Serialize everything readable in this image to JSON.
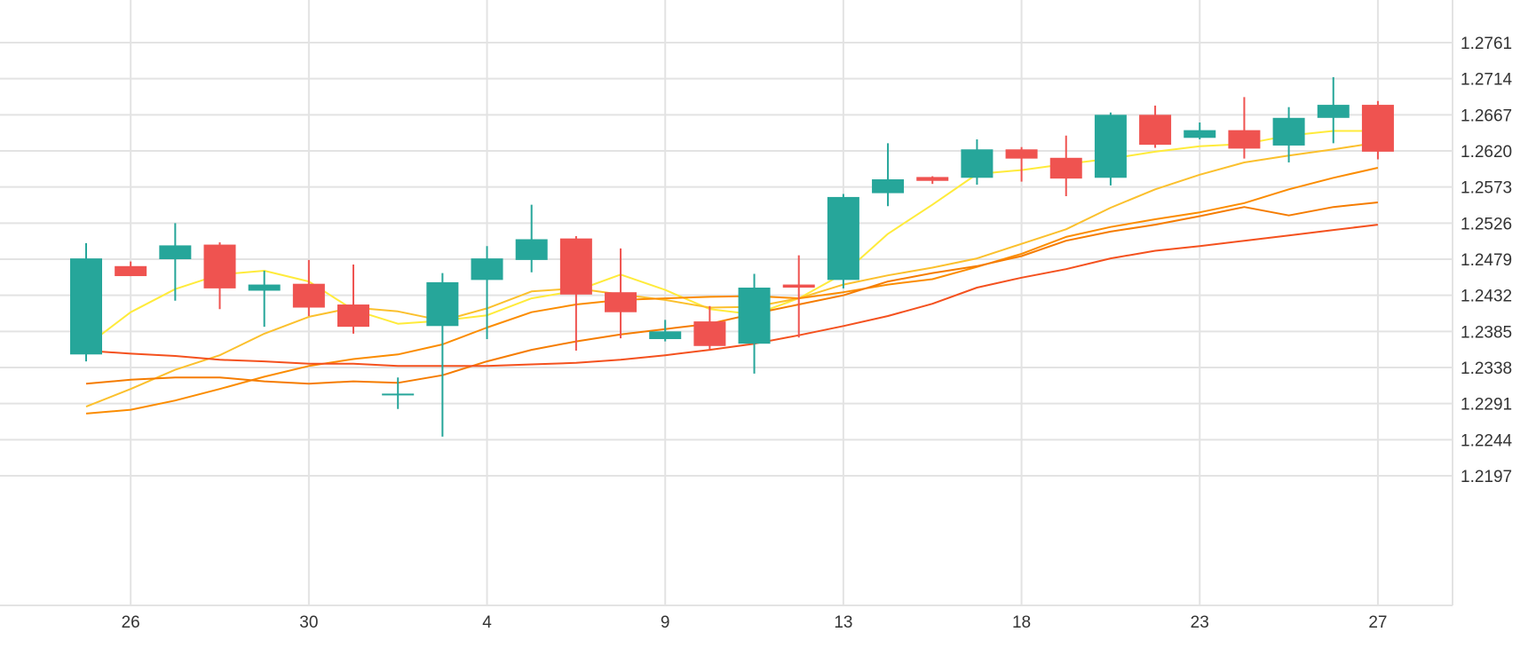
{
  "chart_data": {
    "type": "candlestick",
    "title": "",
    "xlabel": "",
    "ylabel": "",
    "ylim": [
      1.215,
      1.2808
    ],
    "y_ticks": [
      "1.2761",
      "1.2714",
      "1.2667",
      "1.2620",
      "1.2573",
      "1.2526",
      "1.2479",
      "1.2432",
      "1.2385",
      "1.2338",
      "1.2291",
      "1.2244",
      "1.2197"
    ],
    "x_ticks": [
      {
        "label": "26",
        "index": 1
      },
      {
        "label": "30",
        "index": 5
      },
      {
        "label": "4",
        "index": 9
      },
      {
        "label": "9",
        "index": 13
      },
      {
        "label": "13",
        "index": 17
      },
      {
        "label": "18",
        "index": 21
      },
      {
        "label": "23",
        "index": 25
      },
      {
        "label": "27",
        "index": 29
      }
    ],
    "grid": true,
    "up_color": "#26a69a",
    "down_color": "#ef5350",
    "candles": [
      {
        "open": 1.2355,
        "high": 1.25,
        "low": 1.2346,
        "close": 1.248
      },
      {
        "open": 1.247,
        "high": 1.2476,
        "low": 1.2457,
        "close": 1.2457
      },
      {
        "open": 1.2479,
        "high": 1.2526,
        "low": 1.2425,
        "close": 1.2497
      },
      {
        "open": 1.2498,
        "high": 1.2501,
        "low": 1.2414,
        "close": 1.2441
      },
      {
        "open": 1.2438,
        "high": 1.2464,
        "low": 1.2391,
        "close": 1.2446
      },
      {
        "open": 1.2447,
        "high": 1.2478,
        "low": 1.2405,
        "close": 1.2416
      },
      {
        "open": 1.242,
        "high": 1.2472,
        "low": 1.2382,
        "close": 1.2391
      },
      {
        "open": 1.2303,
        "high": 1.2325,
        "low": 1.2284,
        "close": 1.2304
      },
      {
        "open": 1.2392,
        "high": 1.2461,
        "low": 1.2248,
        "close": 1.2449
      },
      {
        "open": 1.2452,
        "high": 1.2496,
        "low": 1.2375,
        "close": 1.248
      },
      {
        "open": 1.2478,
        "high": 1.255,
        "low": 1.2462,
        "close": 1.2505
      },
      {
        "open": 1.2506,
        "high": 1.2509,
        "low": 1.236,
        "close": 1.2433
      },
      {
        "open": 1.2436,
        "high": 1.2493,
        "low": 1.2376,
        "close": 1.241
      },
      {
        "open": 1.2375,
        "high": 1.24,
        "low": 1.2372,
        "close": 1.2385
      },
      {
        "open": 1.2398,
        "high": 1.2418,
        "low": 1.2362,
        "close": 1.2366
      },
      {
        "open": 1.2369,
        "high": 1.246,
        "low": 1.233,
        "close": 1.2442
      },
      {
        "open": 1.2446,
        "high": 1.2484,
        "low": 1.2377,
        "close": 1.2442
      },
      {
        "open": 1.2452,
        "high": 1.2564,
        "low": 1.2441,
        "close": 1.256
      },
      {
        "open": 1.2565,
        "high": 1.263,
        "low": 1.2548,
        "close": 1.2583
      },
      {
        "open": 1.2586,
        "high": 1.2587,
        "low": 1.2577,
        "close": 1.2581
      },
      {
        "open": 1.2585,
        "high": 1.2635,
        "low": 1.2576,
        "close": 1.2622
      },
      {
        "open": 1.2622,
        "high": 1.2625,
        "low": 1.258,
        "close": 1.261
      },
      {
        "open": 1.2611,
        "high": 1.264,
        "low": 1.2561,
        "close": 1.2584
      },
      {
        "open": 1.2585,
        "high": 1.267,
        "low": 1.2575,
        "close": 1.2667
      },
      {
        "open": 1.2667,
        "high": 1.2679,
        "low": 1.2624,
        "close": 1.2628
      },
      {
        "open": 1.2637,
        "high": 1.2657,
        "low": 1.2635,
        "close": 1.2647
      },
      {
        "open": 1.2647,
        "high": 1.269,
        "low": 1.261,
        "close": 1.2623
      },
      {
        "open": 1.2627,
        "high": 1.2677,
        "low": 1.2605,
        "close": 1.2663
      },
      {
        "open": 1.2663,
        "high": 1.2716,
        "low": 1.263,
        "close": 1.268
      },
      {
        "open": 1.268,
        "high": 1.2685,
        "low": 1.2609,
        "close": 1.2619
      }
    ],
    "series": [
      {
        "type": "line",
        "color": "#ffeb3b",
        "values": [
          1.2366,
          1.241,
          1.244,
          1.2459,
          1.2464,
          1.245,
          1.2413,
          1.2395,
          1.2399,
          1.2406,
          1.2428,
          1.2438,
          1.2459,
          1.2439,
          1.2414,
          1.2407,
          1.2428,
          1.246,
          1.2512,
          1.255,
          1.259,
          1.2595,
          1.2603,
          1.261,
          1.2619,
          1.2626,
          1.2629,
          1.264,
          1.2646,
          1.2646
        ]
      },
      {
        "type": "line",
        "color": "#fbc02d",
        "values": [
          1.2287,
          1.231,
          1.2335,
          1.2354,
          1.2382,
          1.2404,
          1.2416,
          1.2411,
          1.2399,
          1.2415,
          1.2437,
          1.2441,
          1.2433,
          1.2426,
          1.2416,
          1.2417,
          1.2428,
          1.2446,
          1.2458,
          1.2468,
          1.248,
          1.2499,
          1.2518,
          1.2546,
          1.257,
          1.2589,
          1.2605,
          1.2614,
          1.2622,
          1.2631
        ]
      },
      {
        "type": "line",
        "color": "#fb8c00",
        "values": [
          1.2278,
          1.2283,
          1.2295,
          1.231,
          1.2326,
          1.234,
          1.2349,
          1.2355,
          1.2368,
          1.239,
          1.241,
          1.242,
          1.2426,
          1.2428,
          1.243,
          1.2431,
          1.2428,
          1.2436,
          1.2446,
          1.2453,
          1.2469,
          1.2486,
          1.2508,
          1.2521,
          1.2531,
          1.254,
          1.2552,
          1.257,
          1.2585,
          1.2598
        ]
      },
      {
        "type": "line",
        "color": "#f57c00",
        "values": [
          1.2317,
          1.2322,
          1.2325,
          1.2325,
          1.232,
          1.2317,
          1.232,
          1.2318,
          1.2328,
          1.2346,
          1.2361,
          1.2372,
          1.2381,
          1.2388,
          1.2395,
          1.2408,
          1.242,
          1.2432,
          1.245,
          1.2461,
          1.247,
          1.2483,
          1.2503,
          1.2515,
          1.2524,
          1.2535,
          1.2547,
          1.2536,
          1.2547,
          1.2553
        ]
      },
      {
        "type": "line",
        "color": "#f4511e",
        "values": [
          1.236,
          1.2356,
          1.2353,
          1.2348,
          1.2346,
          1.2343,
          1.2343,
          1.234,
          1.234,
          1.234,
          1.2342,
          1.2344,
          1.2348,
          1.2354,
          1.2361,
          1.2369,
          1.238,
          1.2392,
          1.2405,
          1.2421,
          1.2442,
          1.2455,
          1.2466,
          1.248,
          1.249,
          1.2496,
          1.2503,
          1.251,
          1.2517,
          1.2524
        ]
      }
    ]
  }
}
